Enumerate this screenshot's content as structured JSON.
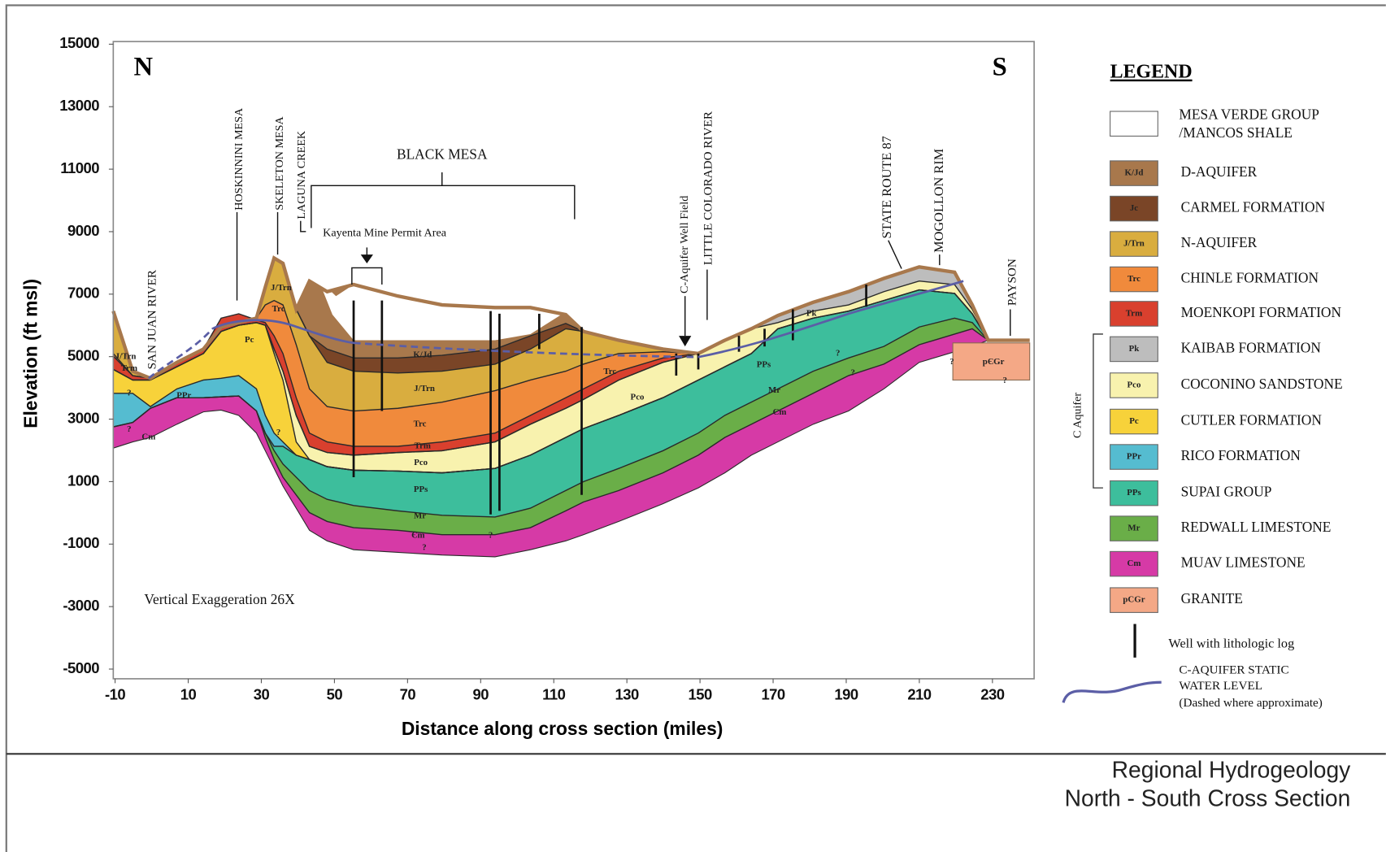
{
  "chart": {
    "direction_labels": [
      "N",
      "S"
    ],
    "y_axis_label": "Elevation (ft msl)",
    "x_axis_label": "Distance along cross section (miles)",
    "xlim": [
      -10.5,
      241.4
    ],
    "ylim": [
      -5310,
      15085
    ],
    "xticks": [
      -10,
      10,
      30,
      50,
      70,
      90,
      110,
      130,
      150,
      170,
      190,
      210,
      230
    ],
    "yticks": [
      15000,
      13000,
      11000,
      9000,
      7000,
      5000,
      3000,
      1000,
      -1000,
      -3000,
      -5000
    ],
    "note": "Vertical Exaggeration 26X",
    "place_labels": [
      "SAN JUAN RIVER",
      "HOSKINNINI MESA",
      "SKELETON MESA",
      "LAGUNA CREEK",
      "BLACK MESA",
      "Kayenta Mine Permit Area",
      "C-Aquifer Well Field",
      "LITTLE COLORADO RIVER",
      "STATE ROUTE 87",
      "MOGOLLON RIM",
      "PAYSON"
    ],
    "unit_labels": [
      "K/Jd",
      "J/Trn",
      "Trc",
      "Trm",
      "Pco",
      "PPs",
      "Mr",
      "Єm",
      "Trc",
      "Pco",
      "PPs",
      "Mr",
      "Cm",
      "Pk",
      "Pc",
      "PPr",
      "J/Trn",
      "Trm",
      "Trc",
      "J/Trn",
      "Cm",
      "pЄGr",
      "?",
      "?",
      "?",
      "?",
      "?",
      "?",
      "?",
      "?",
      "?"
    ]
  },
  "legend": {
    "title": "LEGEND",
    "items": [
      {
        "label": [
          "MESA VERDE GROUP",
          "/MANCOS SHALE"
        ],
        "color": "#ffffff"
      },
      {
        "code": "K/Jd",
        "label": "D-AQUIFER",
        "color": "#a8784c"
      },
      {
        "code": "Jc",
        "label": "CARMEL FORMATION",
        "color": "#7a4527"
      },
      {
        "code": "J/Trn",
        "label": "N-AQUIFER",
        "color": "#d9ad3f"
      },
      {
        "code": "Trc",
        "label": "CHINLE FORMATION",
        "color": "#f08a3c"
      },
      {
        "code": "Trm",
        "label": "MOENKOPI FORMATION",
        "color": "#d9402e"
      },
      {
        "code": "Pk",
        "label": "KAIBAB FORMATION",
        "color": "#bdbdbd"
      },
      {
        "code": "Pco",
        "label": "COCONINO SANDSTONE",
        "color": "#f8f2ae"
      },
      {
        "code": "Pc",
        "label": "CUTLER FORMATION",
        "color": "#f7d23a"
      },
      {
        "code": "PPr",
        "label": "RICO FORMATION",
        "color": "#55bcd0"
      },
      {
        "code": "PPs",
        "label": "SUPAI GROUP",
        "color": "#3dbe9c"
      },
      {
        "code": "Mr",
        "label": "REDWALL LIMESTONE",
        "color": "#6aae48"
      },
      {
        "code": "Cm",
        "label": "MUAV LIMESTONE",
        "color": "#d63aa6"
      },
      {
        "code": "pCGr",
        "label": "GRANITE",
        "color": "#f4a886"
      }
    ],
    "bracket_label": "C Aquifer",
    "well_label": "Well with lithologic log",
    "water_level_label": [
      "C-AQUIFER STATIC",
      "WATER LEVEL",
      "(Dashed where approximate)"
    ]
  },
  "footer": {
    "title": "Regional Hydrogeology",
    "subtitle": "North - South Cross Section"
  }
}
